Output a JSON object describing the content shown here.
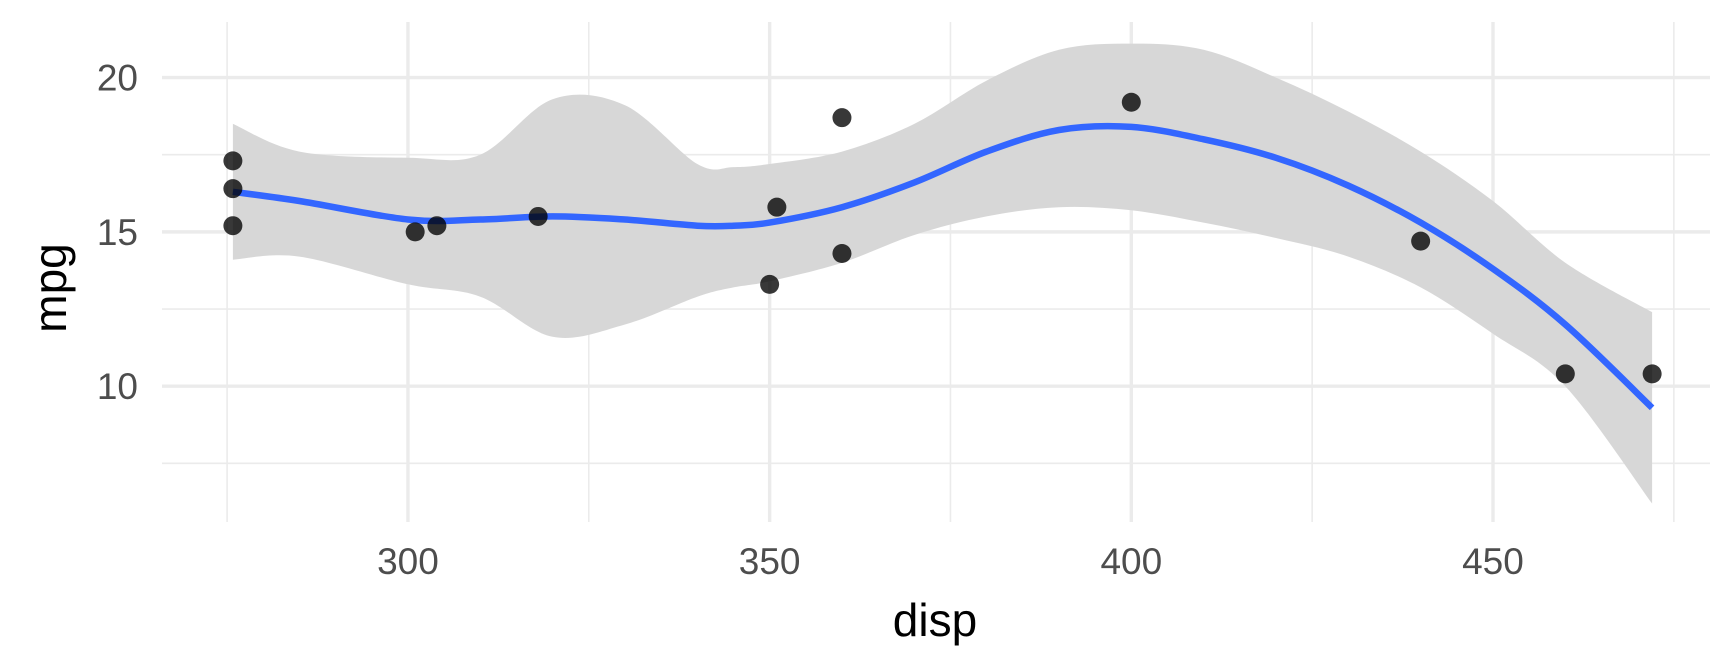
{
  "chart_data": {
    "type": "scatter",
    "xlabel": "disp",
    "ylabel": "mpg",
    "xlim": [
      266,
      480
    ],
    "ylim": [
      5.6,
      21.8
    ],
    "x_ticks": [
      300,
      350,
      400,
      450
    ],
    "x_minor_ticks": [
      275,
      325,
      375,
      425,
      475
    ],
    "y_ticks": [
      10,
      15,
      20
    ],
    "y_minor_ticks": [
      7.5,
      12.5,
      17.5
    ],
    "grid": true,
    "legend": "none",
    "points": [
      {
        "x": 275.8,
        "y": 16.4
      },
      {
        "x": 275.8,
        "y": 17.3
      },
      {
        "x": 275.8,
        "y": 15.2
      },
      {
        "x": 301,
        "y": 15.0
      },
      {
        "x": 304,
        "y": 15.2
      },
      {
        "x": 318,
        "y": 15.5
      },
      {
        "x": 350,
        "y": 13.3
      },
      {
        "x": 351,
        "y": 15.8
      },
      {
        "x": 360,
        "y": 18.7
      },
      {
        "x": 360,
        "y": 14.3
      },
      {
        "x": 400,
        "y": 19.2
      },
      {
        "x": 440,
        "y": 14.7
      },
      {
        "x": 460,
        "y": 10.4
      },
      {
        "x": 472,
        "y": 10.4
      }
    ],
    "smooth": {
      "method": "loess",
      "color": "#3366ff",
      "band_color": "#d6d6d6",
      "x": [
        275.8,
        285,
        300,
        310,
        320,
        330,
        340,
        345,
        350,
        360,
        370,
        380,
        390,
        400,
        410,
        420,
        430,
        440,
        450,
        460,
        472
      ],
      "y": [
        16.3,
        16.0,
        15.4,
        15.4,
        15.5,
        15.4,
        15.2,
        15.2,
        15.3,
        15.8,
        16.6,
        17.6,
        18.3,
        18.4,
        18.0,
        17.4,
        16.5,
        15.3,
        13.8,
        12.0,
        9.3
      ],
      "upper": [
        18.5,
        17.6,
        17.4,
        17.5,
        19.3,
        19.1,
        17.2,
        17.1,
        17.2,
        17.6,
        18.5,
        19.9,
        20.9,
        21.1,
        20.9,
        20.0,
        18.9,
        17.6,
        16.0,
        14.0,
        12.4
      ],
      "lower": [
        14.1,
        14.2,
        13.3,
        12.9,
        11.6,
        12.0,
        12.9,
        13.2,
        13.4,
        14.0,
        14.9,
        15.5,
        15.8,
        15.7,
        15.3,
        14.8,
        14.2,
        13.2,
        11.7,
        10.0,
        6.2
      ]
    },
    "colors": {
      "background": "#ffffff",
      "grid_major": "#ebebeb",
      "grid_minor": "#ebebeb",
      "point": "#000000",
      "tick_label": "#4d4d4d",
      "axis_title": "#000000"
    }
  }
}
